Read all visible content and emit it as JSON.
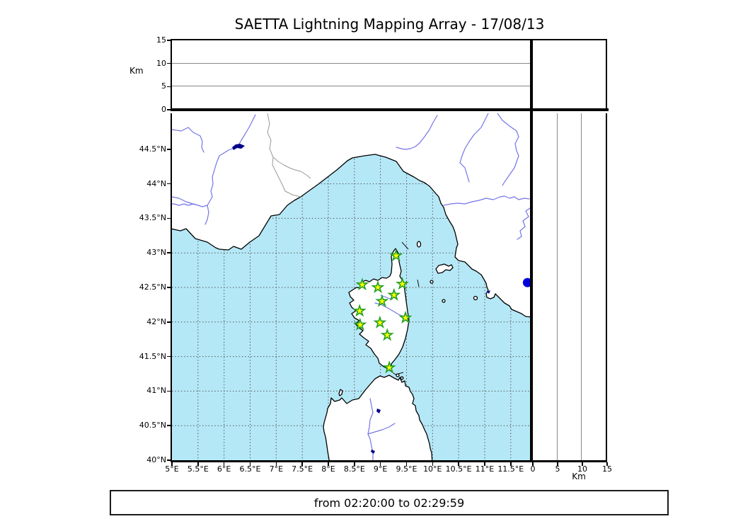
{
  "title": "SAETTA Lightning Mapping Array - 17/08/13",
  "footer": "from 02:20:00 to 02:29:59",
  "axes": {
    "altitude_label_left": "Km",
    "altitude_label_bottom": "Km",
    "altitude_range": [
      0,
      15
    ],
    "altitude_ticks": [
      0,
      5,
      10,
      15
    ],
    "altitude_gridlines": [
      5,
      10
    ],
    "lat_ticks": [
      {
        "value": 44.5,
        "label": "44.5°N"
      },
      {
        "value": 44.0,
        "label": "44°N"
      },
      {
        "value": 43.5,
        "label": "43.5°N"
      },
      {
        "value": 43.0,
        "label": "43°N"
      },
      {
        "value": 42.5,
        "label": "42.5°N"
      },
      {
        "value": 42.0,
        "label": "42°N"
      },
      {
        "value": 41.5,
        "label": "41.5°N"
      },
      {
        "value": 41.0,
        "label": "41°N"
      },
      {
        "value": 40.5,
        "label": "40.5°N"
      },
      {
        "value": 40.0,
        "label": "40°N"
      }
    ],
    "lon_ticks": [
      {
        "value": 5.0,
        "label": "5°E"
      },
      {
        "value": 5.5,
        "label": "5.5°E"
      },
      {
        "value": 6.0,
        "label": "6°E"
      },
      {
        "value": 6.5,
        "label": "6.5°E"
      },
      {
        "value": 7.0,
        "label": "7°E"
      },
      {
        "value": 7.5,
        "label": "7.5°E"
      },
      {
        "value": 8.0,
        "label": "8°E"
      },
      {
        "value": 8.5,
        "label": "8.5°E"
      },
      {
        "value": 9.0,
        "label": "9°E"
      },
      {
        "value": 9.5,
        "label": "9.5°E"
      },
      {
        "value": 10.0,
        "label": "10°E"
      },
      {
        "value": 10.5,
        "label": "10.5°E"
      },
      {
        "value": 11.0,
        "label": "11°E"
      },
      {
        "value": 11.5,
        "label": "11.5°E"
      }
    ],
    "lat_gridlines": [
      40.5,
      41.0,
      41.5,
      42.0,
      42.5,
      43.0,
      43.5,
      44.0,
      44.5
    ],
    "lon_gridlines": [
      5.5,
      6.0,
      6.5,
      7.0,
      7.5,
      8.0,
      8.5,
      9.0,
      9.5,
      10.0,
      10.5,
      11.0,
      11.5
    ],
    "map_extent": {
      "lon_min": 5.0,
      "lon_max": 11.91,
      "lat_min": 40.0,
      "lat_max": 45.02
    }
  },
  "chart_data": {
    "type": "scatter",
    "title": "SAETTA Lightning Mapping Array - 17/08/13",
    "time_window": "from 02:20:00 to 02:29:59",
    "panels": [
      {
        "name": "altitude-vs-longitude",
        "ylabel": "Km",
        "ylim": [
          0,
          15
        ],
        "yticks": [
          0,
          5,
          10,
          15
        ],
        "grid": "horizontal solid",
        "data": []
      },
      {
        "name": "map",
        "xlim": [
          5.0,
          11.91
        ],
        "ylim": [
          40.0,
          45.02
        ],
        "grid": "dashed 0.5deg",
        "region": "Corsica / Ligurian Sea / Tyrrhenian Sea"
      },
      {
        "name": "altitude-vs-latitude",
        "xlabel": "Km",
        "xlim": [
          0,
          15
        ],
        "xticks": [
          0,
          5,
          10,
          15
        ],
        "grid": "vertical solid",
        "data": []
      },
      {
        "name": "histogram-box",
        "data": []
      }
    ],
    "stations": [
      {
        "lon": 9.3,
        "lat": 42.96
      },
      {
        "lon": 8.65,
        "lat": 42.54
      },
      {
        "lon": 8.95,
        "lat": 42.5
      },
      {
        "lon": 9.42,
        "lat": 42.55
      },
      {
        "lon": 9.26,
        "lat": 42.39
      },
      {
        "lon": 9.03,
        "lat": 42.3
      },
      {
        "lon": 8.6,
        "lat": 42.16
      },
      {
        "lon": 9.48,
        "lat": 42.06
      },
      {
        "lon": 8.99,
        "lat": 41.99
      },
      {
        "lon": 8.61,
        "lat": 41.96
      },
      {
        "lon": 9.13,
        "lat": 41.81
      },
      {
        "lon": 9.17,
        "lat": 41.34
      }
    ],
    "sources": [
      {
        "lon": 11.82,
        "lat": 42.57,
        "altitude_km": 0
      }
    ]
  },
  "colors": {
    "sea": "#b5e8f7",
    "land": "#ffffff",
    "coastline": "#000000",
    "river": "#7474e8",
    "country_border": "#999999",
    "grid_dashed": "#555555",
    "panel_grid": "#888888",
    "station_fill": "#ffff00",
    "station_edge": "#22a022",
    "source_fill": "#0000dd",
    "lake": "#00008b"
  }
}
